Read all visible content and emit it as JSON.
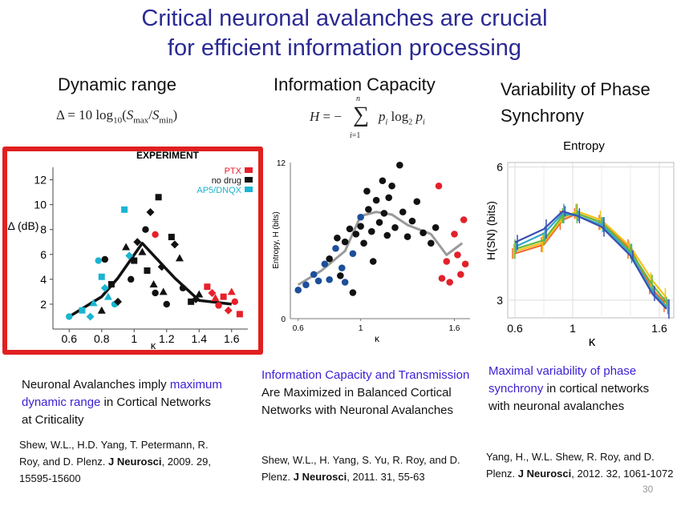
{
  "title": {
    "line1": "Critical neuronal avalanches are crucial",
    "line2": "for efficient information processing"
  },
  "columns": [
    {
      "heading": "Dynamic range",
      "formula": "Δ = 10 log10(Smax/Smin)",
      "caption": {
        "pre": "Neuronal Avalanches imply ",
        "highlight": "maximum dynamic range",
        "post": " in Cortical Networks at Criticality"
      },
      "reference": {
        "authors": "Shew, W.L., H.D. Yang, T. Petermann, R. Roy, and D. Plenz.",
        "journal": "J Neurosci",
        "details": ", 2009. 29, 15595-15600"
      }
    },
    {
      "heading": "Information Capacity",
      "formula": "H = − Σ pi log2 pi",
      "caption": {
        "highlight": "Information Capacity and Transmission",
        "post": " Are Maximized in Balanced Cortical Networks with Neuronal Avalanches"
      },
      "reference": {
        "authors": "Shew, W.L., H. Yang, S. Yu, R. Roy, and D. Plenz.",
        "journal": "J Neurosci",
        "details": ", 2011. 31, 55-63"
      }
    },
    {
      "heading": "Variability of Phase Synchrony",
      "caption": {
        "highlight": "Maximal variability of phase synchrony",
        "post": " in cortical networks with neuronal avalanches"
      },
      "reference": {
        "authors": "Yang, H., W.L. Shew, R. Roy, and D. Plenz.",
        "journal": "J Neurosci",
        "details": ", 2012. 32, 1061-1072"
      }
    }
  ],
  "slide_number": "30",
  "chart_data": [
    {
      "type": "scatter",
      "title": "EXPERIMENT",
      "xlabel": "κ",
      "ylabel": "Δ (dB)",
      "xticks": [
        "0.6",
        "0.8",
        "1",
        "1.2",
        "1.4",
        "1.6"
      ],
      "yticks": [
        "2",
        "4",
        "6",
        "8",
        "10",
        "12"
      ],
      "xlim": [
        0.5,
        1.7
      ],
      "ylim": [
        0,
        13
      ],
      "legend": [
        {
          "name": "PTX",
          "color": "#e8202a"
        },
        {
          "name": "no drug",
          "color": "#111111"
        },
        {
          "name": "AP5/DNQX",
          "color": "#1ab5d0"
        }
      ],
      "legend_position": "top-right",
      "points": [
        {
          "x": 0.6,
          "y": 1.0,
          "g": 2
        },
        {
          "x": 0.68,
          "y": 1.5,
          "g": 2
        },
        {
          "x": 0.73,
          "y": 1.0,
          "g": 2
        },
        {
          "x": 0.75,
          "y": 2.1,
          "g": 2
        },
        {
          "x": 0.78,
          "y": 5.5,
          "g": 2
        },
        {
          "x": 0.8,
          "y": 4.2,
          "g": 2
        },
        {
          "x": 0.82,
          "y": 3.3,
          "g": 2
        },
        {
          "x": 0.84,
          "y": 2.6,
          "g": 2
        },
        {
          "x": 0.88,
          "y": 2.0,
          "g": 2
        },
        {
          "x": 0.94,
          "y": 9.6,
          "g": 2
        },
        {
          "x": 0.97,
          "y": 5.9,
          "g": 2
        },
        {
          "x": 0.8,
          "y": 1.5,
          "g": 1
        },
        {
          "x": 0.82,
          "y": 5.6,
          "g": 1
        },
        {
          "x": 0.86,
          "y": 3.6,
          "g": 1
        },
        {
          "x": 0.9,
          "y": 2.2,
          "g": 1
        },
        {
          "x": 0.95,
          "y": 6.6,
          "g": 1
        },
        {
          "x": 0.98,
          "y": 4.0,
          "g": 1
        },
        {
          "x": 1.0,
          "y": 5.5,
          "g": 1
        },
        {
          "x": 1.02,
          "y": 7.0,
          "g": 1
        },
        {
          "x": 1.05,
          "y": 6.2,
          "g": 1
        },
        {
          "x": 1.07,
          "y": 8.0,
          "g": 1
        },
        {
          "x": 1.08,
          "y": 4.7,
          "g": 1
        },
        {
          "x": 1.1,
          "y": 9.4,
          "g": 1
        },
        {
          "x": 1.12,
          "y": 3.6,
          "g": 1
        },
        {
          "x": 1.13,
          "y": 2.9,
          "g": 1
        },
        {
          "x": 1.15,
          "y": 10.6,
          "g": 1
        },
        {
          "x": 1.17,
          "y": 5.0,
          "g": 1
        },
        {
          "x": 1.18,
          "y": 3.0,
          "g": 1
        },
        {
          "x": 1.2,
          "y": 2.0,
          "g": 1
        },
        {
          "x": 1.23,
          "y": 7.4,
          "g": 1
        },
        {
          "x": 1.25,
          "y": 6.8,
          "g": 1
        },
        {
          "x": 1.28,
          "y": 5.7,
          "g": 1
        },
        {
          "x": 1.3,
          "y": 3.3,
          "g": 1
        },
        {
          "x": 1.35,
          "y": 2.2,
          "g": 1
        },
        {
          "x": 1.38,
          "y": 2.4,
          "g": 1
        },
        {
          "x": 1.4,
          "y": 2.8,
          "g": 1
        },
        {
          "x": 1.13,
          "y": 7.6,
          "g": 0
        },
        {
          "x": 1.45,
          "y": 3.4,
          "g": 0
        },
        {
          "x": 1.48,
          "y": 2.9,
          "g": 0
        },
        {
          "x": 1.5,
          "y": 2.5,
          "g": 0
        },
        {
          "x": 1.52,
          "y": 1.9,
          "g": 0
        },
        {
          "x": 1.55,
          "y": 2.6,
          "g": 0
        },
        {
          "x": 1.58,
          "y": 1.5,
          "g": 0
        },
        {
          "x": 1.6,
          "y": 3.0,
          "g": 0
        },
        {
          "x": 1.62,
          "y": 2.2,
          "g": 0
        },
        {
          "x": 1.65,
          "y": 1.2,
          "g": 0
        }
      ],
      "curve": {
        "x": [
          0.6,
          0.8,
          0.9,
          1.05,
          1.25,
          1.4,
          1.6
        ],
        "y": [
          1.0,
          2.6,
          4.1,
          6.9,
          4.1,
          2.3,
          2.0
        ]
      }
    },
    {
      "type": "scatter",
      "ylabel": "Entropy, H (bits)",
      "xlabel": "κ",
      "xticks": [
        "0.6",
        "1",
        "1.6"
      ],
      "yticks": [
        "0",
        "12"
      ],
      "xlim": [
        0.55,
        1.7
      ],
      "ylim": [
        0,
        12
      ],
      "points": [
        {
          "x": 0.6,
          "y": 2.2,
          "g": 2
        },
        {
          "x": 0.65,
          "y": 2.6,
          "g": 2
        },
        {
          "x": 0.7,
          "y": 3.4,
          "g": 2
        },
        {
          "x": 0.73,
          "y": 2.9,
          "g": 2
        },
        {
          "x": 0.77,
          "y": 4.2,
          "g": 2
        },
        {
          "x": 0.8,
          "y": 3.0,
          "g": 2
        },
        {
          "x": 0.84,
          "y": 5.4,
          "g": 2
        },
        {
          "x": 0.88,
          "y": 3.9,
          "g": 2
        },
        {
          "x": 0.9,
          "y": 2.8,
          "g": 2
        },
        {
          "x": 0.95,
          "y": 5.0,
          "g": 2
        },
        {
          "x": 1.0,
          "y": 7.8,
          "g": 2
        },
        {
          "x": 0.8,
          "y": 4.6,
          "g": 1
        },
        {
          "x": 0.85,
          "y": 6.2,
          "g": 1
        },
        {
          "x": 0.87,
          "y": 3.3,
          "g": 1
        },
        {
          "x": 0.9,
          "y": 5.9,
          "g": 1
        },
        {
          "x": 0.93,
          "y": 6.9,
          "g": 1
        },
        {
          "x": 0.95,
          "y": 2.0,
          "g": 1
        },
        {
          "x": 0.97,
          "y": 6.5,
          "g": 1
        },
        {
          "x": 1.0,
          "y": 7.1,
          "g": 1
        },
        {
          "x": 1.02,
          "y": 5.8,
          "g": 1
        },
        {
          "x": 1.04,
          "y": 9.8,
          "g": 1
        },
        {
          "x": 1.05,
          "y": 8.4,
          "g": 1
        },
        {
          "x": 1.07,
          "y": 6.7,
          "g": 1
        },
        {
          "x": 1.08,
          "y": 4.4,
          "g": 1
        },
        {
          "x": 1.1,
          "y": 9.1,
          "g": 1
        },
        {
          "x": 1.12,
          "y": 7.4,
          "g": 1
        },
        {
          "x": 1.14,
          "y": 10.6,
          "g": 1
        },
        {
          "x": 1.15,
          "y": 8.1,
          "g": 1
        },
        {
          "x": 1.17,
          "y": 6.4,
          "g": 1
        },
        {
          "x": 1.18,
          "y": 9.3,
          "g": 1
        },
        {
          "x": 1.2,
          "y": 10.2,
          "g": 1
        },
        {
          "x": 1.22,
          "y": 7.0,
          "g": 1
        },
        {
          "x": 1.25,
          "y": 11.8,
          "g": 1
        },
        {
          "x": 1.27,
          "y": 8.2,
          "g": 1
        },
        {
          "x": 1.3,
          "y": 6.3,
          "g": 1
        },
        {
          "x": 1.33,
          "y": 7.5,
          "g": 1
        },
        {
          "x": 1.36,
          "y": 9.0,
          "g": 1
        },
        {
          "x": 1.4,
          "y": 6.6,
          "g": 1
        },
        {
          "x": 1.45,
          "y": 5.8,
          "g": 1
        },
        {
          "x": 1.48,
          "y": 7.0,
          "g": 1
        },
        {
          "x": 1.5,
          "y": 10.2,
          "g": 0
        },
        {
          "x": 1.52,
          "y": 3.1,
          "g": 0
        },
        {
          "x": 1.55,
          "y": 4.4,
          "g": 0
        },
        {
          "x": 1.57,
          "y": 2.8,
          "g": 0
        },
        {
          "x": 1.6,
          "y": 6.5,
          "g": 0
        },
        {
          "x": 1.62,
          "y": 4.9,
          "g": 0
        },
        {
          "x": 1.64,
          "y": 3.4,
          "g": 0
        },
        {
          "x": 1.66,
          "y": 7.6,
          "g": 0
        },
        {
          "x": 1.67,
          "y": 4.2,
          "g": 0
        }
      ],
      "curve": {
        "x": [
          0.6,
          0.75,
          0.9,
          1.0,
          1.1,
          1.2,
          1.3,
          1.45,
          1.55,
          1.65
        ],
        "y": [
          2.6,
          3.7,
          5.2,
          7.9,
          8.2,
          8.0,
          7.2,
          6.5,
          4.9,
          5.8
        ]
      }
    },
    {
      "type": "line",
      "title": "Entropy",
      "ylabel": "H(SN) (bits)",
      "xlabel": "κ",
      "xticks": [
        "0.6",
        "1",
        "1.6"
      ],
      "yticks": [
        "3",
        "6"
      ],
      "xlim": [
        0.55,
        1.7
      ],
      "ylim": [
        2.6,
        6.1
      ],
      "grid": true,
      "x": [
        0.6,
        0.8,
        0.93,
        1.03,
        1.2,
        1.4,
        1.55,
        1.65
      ],
      "series": [
        {
          "color": "#f26b2c",
          "values": [
            4.05,
            4.25,
            4.8,
            4.95,
            4.75,
            4.15,
            3.25,
            2.9
          ]
        },
        {
          "color": "#f2c21a",
          "values": [
            4.1,
            4.3,
            4.85,
            5.0,
            4.8,
            4.2,
            3.45,
            3.05
          ]
        },
        {
          "color": "#62b840",
          "values": [
            4.15,
            4.35,
            4.9,
            4.95,
            4.75,
            4.1,
            3.35,
            2.95
          ]
        },
        {
          "color": "#36a7c8",
          "values": [
            4.2,
            4.5,
            4.95,
            4.9,
            4.7,
            4.05,
            3.2,
            2.85
          ]
        },
        {
          "color": "#3a4fb0",
          "values": [
            4.3,
            4.6,
            5.0,
            4.9,
            4.65,
            4.0,
            3.15,
            2.8
          ]
        }
      ]
    }
  ]
}
